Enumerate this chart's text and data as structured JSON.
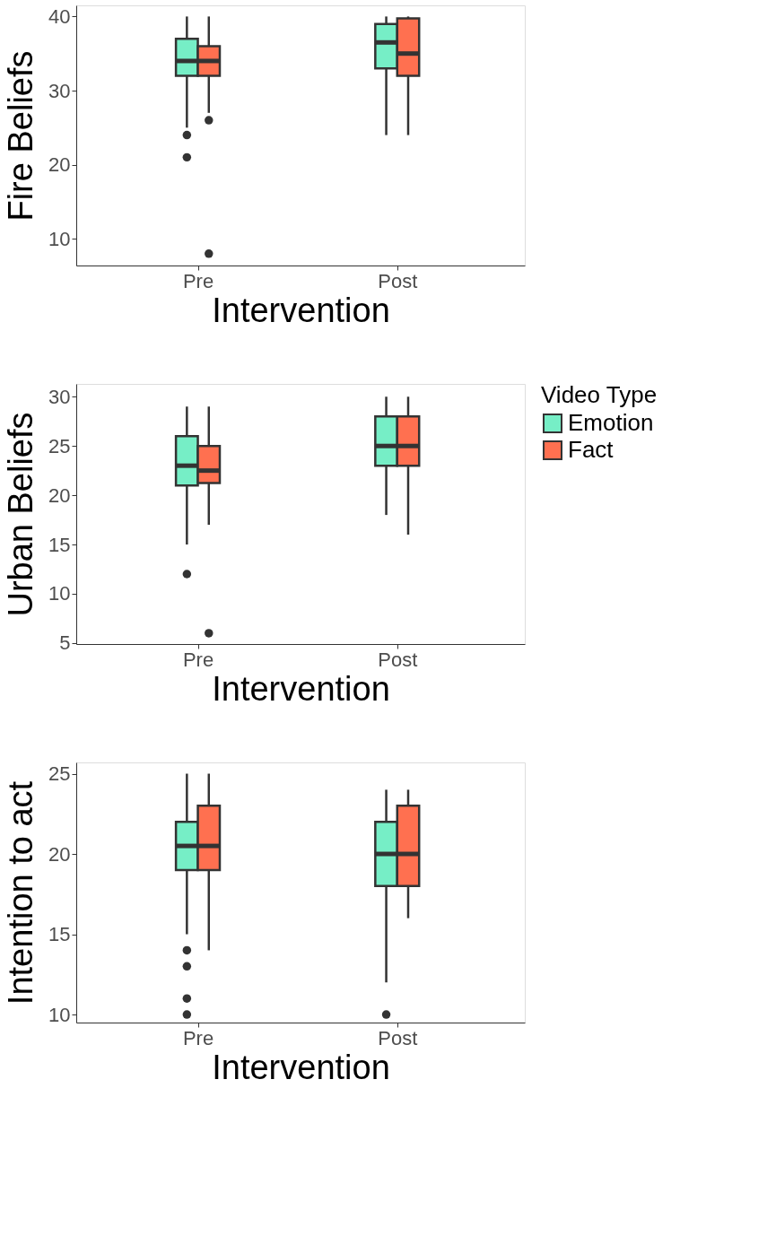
{
  "chart_data": [
    {
      "type": "box",
      "categories": [
        "Pre",
        "Post"
      ],
      "xlabel": "Intervention",
      "ylabel": "Fire Beliefs",
      "ylim": [
        6.4,
        41.5
      ],
      "yticks": [
        10,
        20,
        30,
        40
      ],
      "grid": false,
      "series": [
        {
          "color": "#76eec6",
          "boxes": [
            {
              "low": 25,
              "q1": 32,
              "median": 34,
              "q3": 37,
              "high": 40,
              "outliers": [
                24,
                21
              ]
            },
            {
              "low": 24,
              "q1": 33,
              "median": 36.5,
              "q3": 39,
              "high": 40
            }
          ]
        },
        {
          "color": "#ff7050",
          "boxes": [
            {
              "low": 27,
              "q1": 32,
              "median": 34,
              "q3": 36,
              "high": 40,
              "outliers": [
                26,
                8
              ]
            },
            {
              "low": 24,
              "q1": 32,
              "median": 35,
              "q3": 39.75,
              "high": 40
            }
          ]
        }
      ]
    },
    {
      "type": "box",
      "categories": [
        "Pre",
        "Post"
      ],
      "xlabel": "Intervention",
      "ylabel": "Urban Beliefs",
      "ylim": [
        4.9,
        31.3
      ],
      "yticks": [
        5,
        10,
        15,
        20,
        25,
        30
      ],
      "grid": false,
      "legend": "right",
      "legend_title": "Video Type",
      "series": [
        {
          "name": "Emotion",
          "color": "#76eec6",
          "boxes": [
            {
              "low": 15,
              "q1": 21,
              "median": 23,
              "q3": 26,
              "high": 29,
              "outliers": [
                12
              ]
            },
            {
              "low": 18,
              "q1": 23,
              "median": 25,
              "q3": 28,
              "high": 30
            }
          ]
        },
        {
          "name": "Fact",
          "color": "#ff7050",
          "boxes": [
            {
              "low": 17,
              "q1": 21.25,
              "median": 22.5,
              "q3": 25,
              "high": 29,
              "outliers": [
                6
              ]
            },
            {
              "low": 16,
              "q1": 23,
              "median": 25,
              "q3": 28,
              "high": 30
            }
          ]
        }
      ]
    },
    {
      "type": "box",
      "categories": [
        "Pre",
        "Post"
      ],
      "xlabel": "Intervention",
      "ylabel": "Intention to act",
      "ylim": [
        9.5,
        25.7
      ],
      "yticks": [
        10,
        15,
        20,
        25
      ],
      "grid": false,
      "series": [
        {
          "color": "#76eec6",
          "boxes": [
            {
              "low": 15,
              "q1": 19,
              "median": 20.5,
              "q3": 22,
              "high": 25,
              "outliers": [
                14,
                13,
                11,
                10
              ]
            },
            {
              "low": 12,
              "q1": 18,
              "median": 20,
              "q3": 22,
              "high": 24,
              "outliers": [
                10
              ]
            }
          ]
        },
        {
          "color": "#ff7050",
          "boxes": [
            {
              "low": 14,
              "q1": 19,
              "median": 20.5,
              "q3": 23,
              "high": 25
            },
            {
              "low": 16,
              "q1": 18,
              "median": 20,
              "q3": 23,
              "high": 24
            }
          ]
        }
      ]
    }
  ]
}
